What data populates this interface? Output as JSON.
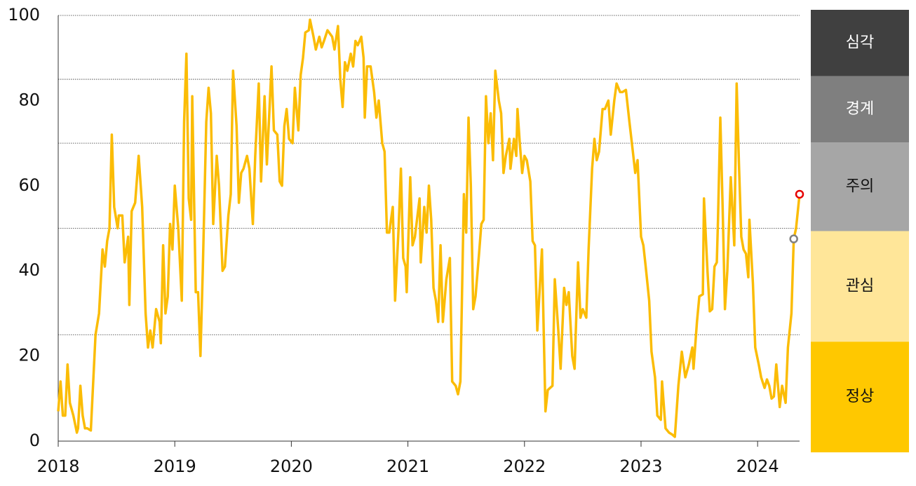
{
  "chart_data": {
    "type": "line",
    "xlim": [
      2018,
      2024.36
    ],
    "xticks": [
      2018,
      2019,
      2020,
      2021,
      2022,
      2023,
      2024
    ],
    "ylim": [
      0,
      100
    ],
    "yticks": [
      0,
      20,
      40,
      60,
      80,
      100
    ],
    "bands": [
      {
        "label": "심각",
        "from": 85,
        "to": 100,
        "color": "#404040",
        "text_color": "#ffffff"
      },
      {
        "label": "경계",
        "from": 70,
        "to": 85,
        "color": "#7f7f7f",
        "text_color": "#ffffff"
      },
      {
        "label": "주의",
        "from": 50,
        "to": 70,
        "color": "#a6a6a6",
        "text_color": "#111111"
      },
      {
        "label": "관심",
        "from": 25,
        "to": 50,
        "color": "#ffe699",
        "text_color": "#111111"
      },
      {
        "label": "정상",
        "from": 0,
        "to": 25,
        "color": "#ffc800",
        "text_color": "#111111"
      }
    ],
    "markers": [
      {
        "x": 2024.31,
        "value": 47.5,
        "color": "#808080"
      },
      {
        "x": 2024.36,
        "value": 58,
        "color": "#e60000"
      }
    ],
    "series": [
      {
        "color": "#fbbc05",
        "x": [
          2018.0,
          2018.02,
          2018.04,
          2018.06,
          2018.08,
          2018.1,
          2018.13,
          2018.16,
          2018.17,
          2018.19,
          2018.21,
          2018.23,
          2018.25,
          2018.28,
          2018.32,
          2018.35,
          2018.38,
          2018.4,
          2018.42,
          2018.44,
          2018.46,
          2018.48,
          2018.51,
          2018.52,
          2018.55,
          2018.57,
          2018.6,
          2018.61,
          2018.63,
          2018.66,
          2018.69,
          2018.72,
          2018.75,
          2018.77,
          2018.79,
          2018.81,
          2018.84,
          2018.87,
          2018.88,
          2018.9,
          2018.92,
          2018.94,
          2018.96,
          2018.98,
          2019.0,
          2019.03,
          2019.06,
          2019.08,
          2019.1,
          2019.12,
          2019.14,
          2019.15,
          2019.18,
          2019.2,
          2019.22,
          2019.24,
          2019.27,
          2019.29,
          2019.31,
          2019.33,
          2019.36,
          2019.38,
          2019.41,
          2019.43,
          2019.46,
          2019.48,
          2019.5,
          2019.53,
          2019.55,
          2019.57,
          2019.59,
          2019.62,
          2019.64,
          2019.67,
          2019.69,
          2019.72,
          2019.74,
          2019.77,
          2019.79,
          2019.83,
          2019.85,
          2019.88,
          2019.9,
          2019.92,
          2019.94,
          2019.96,
          2019.98,
          2020.01,
          2020.03,
          2020.06,
          2020.08,
          2020.1,
          2020.12,
          2020.15,
          2020.16,
          2020.19,
          2020.21,
          2020.24,
          2020.26,
          2020.28,
          2020.31,
          2020.35,
          2020.37,
          2020.4,
          2020.42,
          2020.44,
          2020.46,
          2020.48,
          2020.51,
          2020.53,
          2020.55,
          2020.57,
          2020.6,
          2020.62,
          2020.63,
          2020.65,
          2020.68,
          2020.71,
          2020.73,
          2020.75,
          2020.78,
          2020.8,
          2020.82,
          2020.84,
          2020.87,
          2020.89,
          2020.92,
          2020.94,
          2020.96,
          2020.98,
          2020.99,
          2021.02,
          2021.04,
          2021.06,
          2021.1,
          2021.11,
          2021.14,
          2021.16,
          2021.18,
          2021.2,
          2021.22,
          2021.24,
          2021.26,
          2021.28,
          2021.3,
          2021.33,
          2021.36,
          2021.38,
          2021.41,
          2021.43,
          2021.45,
          2021.48,
          2021.5,
          2021.52,
          2021.54,
          2021.56,
          2021.58,
          2021.61,
          2021.63,
          2021.65,
          2021.67,
          2021.69,
          2021.71,
          2021.73,
          2021.75,
          2021.78,
          2021.8,
          2021.82,
          2021.84,
          2021.87,
          2021.88,
          2021.91,
          2021.93,
          2021.94,
          2021.96,
          2021.98,
          2022.0,
          2022.02,
          2022.05,
          2022.07,
          2022.09,
          2022.11,
          2022.15,
          2022.18,
          2022.2,
          2022.24,
          2022.26,
          2022.29,
          2022.31,
          2022.34,
          2022.36,
          2022.38,
          2022.41,
          2022.43,
          2022.46,
          2022.48,
          2022.5,
          2022.53,
          2022.55,
          2022.58,
          2022.6,
          2022.62,
          2022.64,
          2022.67,
          2022.69,
          2022.72,
          2022.74,
          2022.77,
          2022.79,
          2022.82,
          2022.84,
          2022.87,
          2022.9,
          2022.93,
          2022.95,
          2022.97,
          2023.0,
          2023.02,
          2023.04,
          2023.07,
          2023.09,
          2023.12,
          2023.14,
          2023.17,
          2023.18,
          2023.21,
          2023.24,
          2023.27,
          2023.29,
          2023.32,
          2023.35,
          2023.38,
          2023.41,
          2023.44,
          2023.45,
          2023.48,
          2023.5,
          2023.53,
          2023.54,
          2023.57,
          2023.59,
          2023.61,
          2023.63,
          2023.65,
          2023.66,
          2023.68,
          2023.7,
          2023.72,
          2023.74,
          2023.77,
          2023.8,
          2023.82,
          2023.84,
          2023.86,
          2023.88,
          2023.9,
          2023.92,
          2023.93,
          2023.96,
          2023.98,
          2024.01,
          2024.03,
          2024.06,
          2024.08,
          2024.1,
          2024.12,
          2024.14,
          2024.16,
          2024.19,
          2024.21,
          2024.24,
          2024.26,
          2024.29,
          2024.31,
          2024.33,
          2024.36
        ],
        "values": [
          7,
          14,
          6,
          6,
          18,
          9,
          6,
          2,
          3,
          13,
          6,
          3,
          3,
          2.5,
          25,
          30,
          45,
          41,
          47,
          50,
          72,
          55,
          50,
          53,
          53,
          42,
          48,
          32,
          54,
          56,
          67,
          55,
          30,
          22,
          26,
          22,
          31,
          28,
          23,
          46,
          30,
          34,
          51,
          45,
          60,
          50,
          33,
          75,
          91,
          57,
          52,
          81,
          35,
          35,
          20,
          40,
          75,
          83,
          77,
          51,
          67,
          60,
          40,
          41,
          53,
          58,
          87,
          74,
          56,
          63,
          64,
          67,
          64,
          51,
          67,
          84,
          61,
          81,
          65,
          88,
          73,
          72,
          61,
          60,
          74,
          78,
          71,
          70,
          83,
          73,
          86,
          90,
          96,
          96.5,
          99,
          95,
          92,
          95,
          92.5,
          94,
          96.5,
          95,
          92,
          97.5,
          85,
          78.5,
          89,
          87,
          91,
          88,
          94,
          93,
          95,
          90,
          76,
          88,
          88,
          82,
          76,
          80,
          70,
          68,
          49,
          49,
          55,
          33,
          50,
          64,
          43,
          41,
          35,
          62,
          46,
          48,
          57,
          42,
          55,
          49,
          60,
          52,
          36,
          33,
          28,
          46,
          28,
          38,
          43,
          14,
          13,
          11,
          14,
          58,
          49,
          76,
          60,
          31,
          34,
          44,
          51,
          52,
          81,
          70,
          77,
          66,
          87,
          80,
          77,
          63,
          67,
          71,
          64,
          71,
          67,
          78,
          70,
          63,
          67,
          66,
          61,
          47,
          46,
          26,
          45,
          7,
          12,
          13,
          38,
          26,
          17,
          36,
          32,
          35,
          20,
          17,
          42,
          29,
          31,
          29,
          45,
          64,
          71,
          66,
          68,
          78,
          78,
          80,
          72,
          80,
          84,
          82,
          82,
          82.5,
          75,
          68,
          63,
          66,
          48,
          46,
          41,
          33,
          21,
          15,
          6,
          5,
          14,
          3,
          2,
          1.5,
          1,
          13,
          21,
          15,
          18,
          22,
          17,
          28,
          34,
          34.5,
          57,
          40,
          30.5,
          31,
          41,
          42,
          52,
          76,
          55,
          31,
          40,
          62,
          46,
          84,
          65,
          48,
          45,
          44,
          38.5,
          52,
          37,
          22,
          18,
          15,
          12.5,
          14.5,
          13,
          10,
          10.5,
          18,
          8,
          13,
          9,
          22,
          30,
          47.5,
          50,
          58
        ]
      }
    ]
  }
}
